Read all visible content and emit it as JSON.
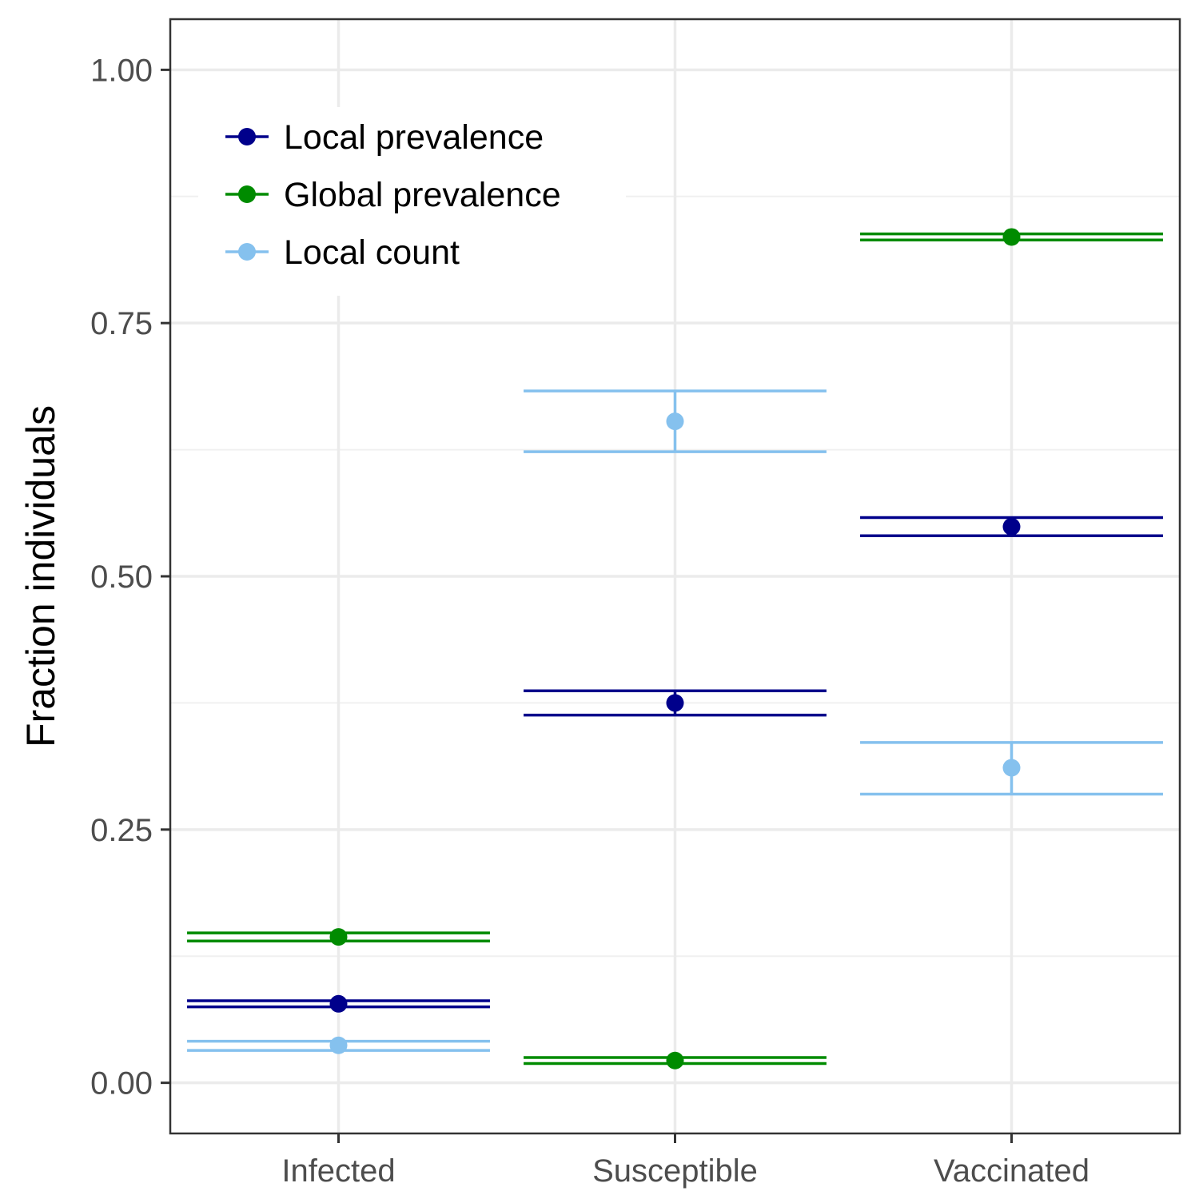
{
  "chart_data": {
    "type": "errorbar-dot",
    "title": "",
    "xlabel": "",
    "ylabel": "Fraction individuals",
    "categories": [
      "Infected",
      "Susceptible",
      "Vaccinated"
    ],
    "ylim": [
      -0.05,
      1.05
    ],
    "yticks": [
      0.0,
      0.25,
      0.5,
      0.75,
      1.0
    ],
    "ytick_labels": [
      "0.00",
      "0.25",
      "0.50",
      "0.75",
      "1.00"
    ],
    "grid": true,
    "legend_position": "top-left",
    "series": [
      {
        "name": "Local prevalence",
        "color": "#00008B",
        "values": [
          0.078,
          0.375,
          0.549
        ],
        "lower": [
          0.075,
          0.363,
          0.54
        ],
        "upper": [
          0.081,
          0.387,
          0.558
        ]
      },
      {
        "name": "Global prevalence",
        "color": "#008B00",
        "values": [
          0.144,
          0.022,
          0.835
        ],
        "lower": [
          0.14,
          0.019,
          0.832
        ],
        "upper": [
          0.148,
          0.025,
          0.838
        ]
      },
      {
        "name": "Local count",
        "color": "#85C1EE",
        "values": [
          0.037,
          0.653,
          0.311
        ],
        "lower": [
          0.032,
          0.623,
          0.285
        ],
        "upper": [
          0.041,
          0.683,
          0.336
        ]
      }
    ]
  }
}
